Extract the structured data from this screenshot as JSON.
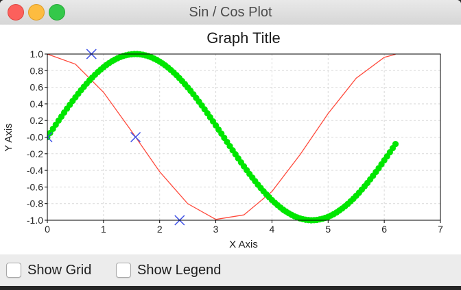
{
  "window": {
    "title": "Sin / Cos Plot"
  },
  "controls": {
    "show_grid": "Show Grid",
    "show_legend": "Show Legend"
  },
  "chart_data": {
    "type": "line",
    "title": "Graph Title",
    "xlabel": "X Axis",
    "ylabel": "Y Axis",
    "xlim": [
      0,
      7
    ],
    "ylim": [
      -1.0,
      1.0
    ],
    "x_ticks": [
      "0",
      "1",
      "2",
      "3",
      "4",
      "5",
      "6",
      "7"
    ],
    "y_ticks": [
      "1.0",
      "0.8",
      "0.6",
      "0.4",
      "0.2",
      "-0.0",
      "-0.2",
      "-0.4",
      "-0.6",
      "-0.8",
      "-1.0"
    ],
    "grid": true,
    "series": [
      {
        "style": "line",
        "color": "#ff4a3c",
        "x": [
          0,
          0.5,
          1.0,
          1.5,
          2.0,
          2.5,
          3.0,
          3.5,
          4.0,
          4.5,
          5.0,
          5.5,
          6.0,
          6.2
        ],
        "y": [
          1.0,
          0.878,
          0.54,
          0.071,
          -0.416,
          -0.801,
          -0.99,
          -0.936,
          -0.654,
          -0.211,
          0.284,
          0.709,
          0.96,
          0.997
        ]
      },
      {
        "style": "dots",
        "color": "#00e600",
        "x": [
          0.0,
          0.05,
          0.1,
          0.15,
          0.2,
          0.25,
          0.3,
          0.35,
          0.4,
          0.45,
          0.5,
          0.55,
          0.6,
          0.65,
          0.7,
          0.75,
          0.8,
          0.85,
          0.9,
          0.95,
          1.0,
          1.05,
          1.1,
          1.15,
          1.2,
          1.25,
          1.3,
          1.35,
          1.4,
          1.45,
          1.5,
          1.55,
          1.6,
          1.65,
          1.7,
          1.75,
          1.8,
          1.85,
          1.9,
          1.95,
          2.0,
          2.05,
          2.1,
          2.15,
          2.2,
          2.25,
          2.3,
          2.35,
          2.4,
          2.45,
          2.5,
          2.55,
          2.6,
          2.65,
          2.7,
          2.75,
          2.8,
          2.85,
          2.9,
          2.95,
          3.0,
          3.05,
          3.1,
          3.15,
          3.2,
          3.25,
          3.3,
          3.35,
          3.4,
          3.45,
          3.5,
          3.55,
          3.6,
          3.65,
          3.7,
          3.75,
          3.8,
          3.85,
          3.9,
          3.95,
          4.0,
          4.05,
          4.1,
          4.15,
          4.2,
          4.25,
          4.3,
          4.35,
          4.4,
          4.45,
          4.5,
          4.55,
          4.6,
          4.65,
          4.7,
          4.75,
          4.8,
          4.85,
          4.9,
          4.95,
          5.0,
          5.05,
          5.1,
          5.15,
          5.2,
          5.25,
          5.3,
          5.35,
          5.4,
          5.45,
          5.5,
          5.55,
          5.6,
          5.65,
          5.7,
          5.75,
          5.8,
          5.85,
          5.9,
          5.95,
          6.0,
          6.05,
          6.1,
          6.15,
          6.2
        ],
        "y": [
          0.0,
          0.05,
          0.1,
          0.149,
          0.199,
          0.247,
          0.296,
          0.343,
          0.389,
          0.435,
          0.479,
          0.523,
          0.565,
          0.605,
          0.644,
          0.682,
          0.717,
          0.751,
          0.783,
          0.813,
          0.841,
          0.867,
          0.891,
          0.913,
          0.932,
          0.949,
          0.964,
          0.976,
          0.985,
          0.993,
          0.997,
          1.0,
          1.0,
          0.997,
          0.992,
          0.984,
          0.974,
          0.961,
          0.946,
          0.929,
          0.909,
          0.887,
          0.863,
          0.837,
          0.808,
          0.778,
          0.746,
          0.711,
          0.675,
          0.638,
          0.598,
          0.558,
          0.516,
          0.472,
          0.427,
          0.382,
          0.335,
          0.287,
          0.239,
          0.19,
          0.141,
          0.091,
          0.042,
          -0.008,
          -0.058,
          -0.108,
          -0.158,
          -0.207,
          -0.256,
          -0.304,
          -0.351,
          -0.397,
          -0.443,
          -0.487,
          -0.53,
          -0.572,
          -0.612,
          -0.651,
          -0.688,
          -0.723,
          -0.757,
          -0.788,
          -0.818,
          -0.846,
          -0.872,
          -0.895,
          -0.916,
          -0.935,
          -0.952,
          -0.966,
          -0.978,
          -0.987,
          -0.994,
          -0.998,
          -1.0,
          -0.999,
          -0.996,
          -0.99,
          -0.982,
          -0.971,
          -0.959,
          -0.943,
          -0.926,
          -0.906,
          -0.883,
          -0.859,
          -0.832,
          -0.804,
          -0.773,
          -0.741,
          -0.706,
          -0.67,
          -0.631,
          -0.592,
          -0.551,
          -0.508,
          -0.465,
          -0.42,
          -0.374,
          -0.327,
          -0.279,
          -0.231,
          -0.182,
          -0.133,
          -0.083
        ]
      },
      {
        "style": "markers",
        "marker": "x",
        "color": "#3b4ee6",
        "x": [
          0.0,
          0.785,
          1.571,
          2.356
        ],
        "y": [
          0.0,
          1.0,
          0.0,
          -1.0
        ]
      }
    ]
  }
}
